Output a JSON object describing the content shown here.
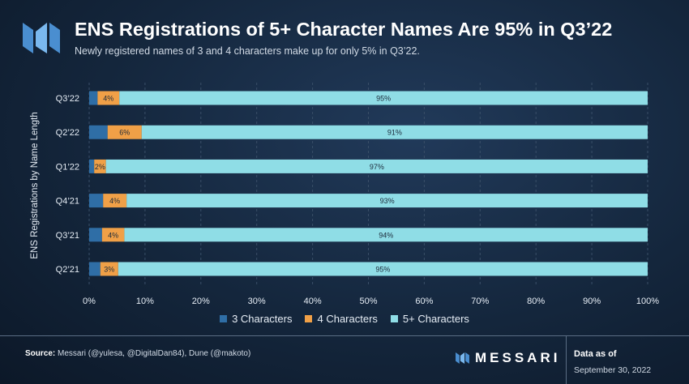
{
  "header": {
    "title": "ENS Registrations of 5+ Character Names Are 95% in Q3’22",
    "subtitle": "Newly registered names of 3 and 4 characters make up for only 5% in Q3’22."
  },
  "colors": {
    "three_chars": "#2f6ea6",
    "four_chars": "#f0a047",
    "five_plus_chars": "#8fdde6",
    "grid": "#3a4f68"
  },
  "chart_data": {
    "type": "bar",
    "orientation": "horizontal",
    "stacked": true,
    "categories": [
      "Q3’22",
      "Q2’22",
      "Q1’22",
      "Q4’21",
      "Q3’21",
      "Q2’21"
    ],
    "series": [
      {
        "name": "3 Characters",
        "values": [
          1.5,
          3.3,
          0.9,
          2.5,
          2.3,
          2.0
        ]
      },
      {
        "name": "4 Characters",
        "values": [
          3.9,
          6.1,
          2.1,
          4.2,
          4.0,
          3.2
        ]
      },
      {
        "name": "5+ Characters",
        "values": [
          94.6,
          90.6,
          97.0,
          93.3,
          93.7,
          94.8
        ]
      }
    ],
    "data_labels": [
      [
        "",
        "4%",
        "95%"
      ],
      [
        "",
        "6%",
        "91%"
      ],
      [
        "",
        "2%",
        "97%"
      ],
      [
        "",
        "4%",
        "93%"
      ],
      [
        "",
        "4%",
        "94%"
      ],
      [
        "",
        "3%",
        "95%"
      ]
    ],
    "xlim": [
      0,
      100
    ],
    "x_ticks": [
      "0%",
      "10%",
      "20%",
      "30%",
      "40%",
      "50%",
      "60%",
      "70%",
      "80%",
      "90%",
      "100%"
    ],
    "ylabel": "ENS Registrations by Name Length",
    "xlabel": "",
    "grid": "vertical dashed",
    "legend": "bottom-center"
  },
  "legend_items": [
    "3 Characters",
    "4 Characters",
    "5+ Characters"
  ],
  "footer": {
    "source_label": "Source:",
    "source_text": " Messari (@yulesa, @DigitalDan84), Dune (@makoto)",
    "brand": "MESSARI",
    "data_as_of_label": "Data as of",
    "data_as_of_date": "September 30, 2022"
  }
}
